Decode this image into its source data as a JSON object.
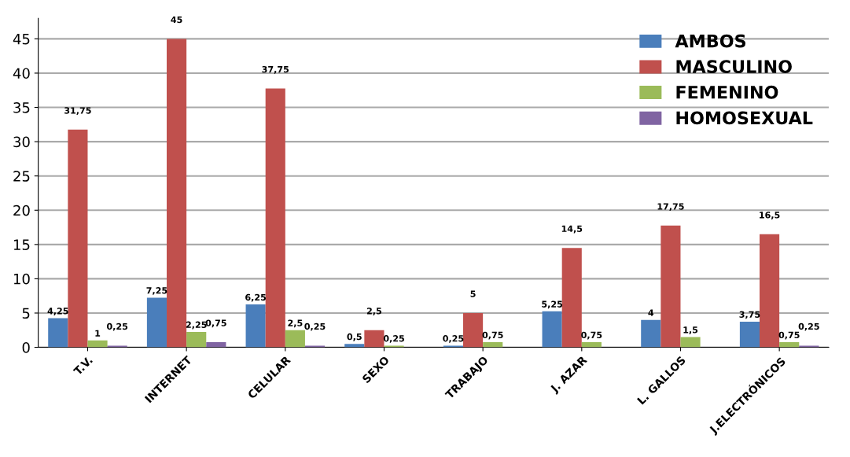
{
  "chart_data": {
    "type": "bar",
    "categories": [
      "T.V.",
      "INTERNET",
      "CELULAR",
      "SEXO",
      "TRABAJO",
      "J. AZAR",
      "L. GALLOS",
      "J.ELECTRÓNICOS"
    ],
    "series": [
      {
        "name": "AMBOS",
        "color": "#4a7ebb",
        "values": [
          4.25,
          7.25,
          6.25,
          0.5,
          0.25,
          5.25,
          4,
          3.75
        ],
        "value_labels": [
          "4,25",
          "7,25",
          "6,25",
          "0,5",
          "0,25",
          "5,25",
          "4",
          "3,75"
        ]
      },
      {
        "name": "MASCULINO",
        "color": "#c0504d",
        "values": [
          31.75,
          45,
          37.75,
          2.5,
          5,
          14.5,
          17.75,
          16.5
        ],
        "value_labels": [
          "31,75",
          "45",
          "37,75",
          "2,5",
          "5",
          "14,5",
          "17,75",
          "16,5"
        ]
      },
      {
        "name": "FEMENINO",
        "color": "#9bbb59",
        "values": [
          1,
          2.25,
          2.5,
          0.25,
          0.75,
          0.75,
          1.5,
          0.75
        ],
        "value_labels": [
          "1",
          "2,25",
          "2,5",
          "0,25",
          "0,75",
          "0,75",
          "1,5",
          "0,75"
        ]
      },
      {
        "name": "HOMOSEXUAL",
        "color": "#8064a2",
        "values": [
          0.25,
          0.75,
          0.25,
          null,
          null,
          null,
          null,
          0.25
        ],
        "value_labels": [
          "0,25",
          "0,75",
          "0,25",
          null,
          null,
          null,
          null,
          "0,25"
        ]
      }
    ],
    "ylim": [
      0,
      48
    ],
    "yticks": [
      0,
      5,
      10,
      15,
      20,
      25,
      30,
      35,
      40,
      45
    ],
    "grid": "y",
    "legend": "top right"
  }
}
